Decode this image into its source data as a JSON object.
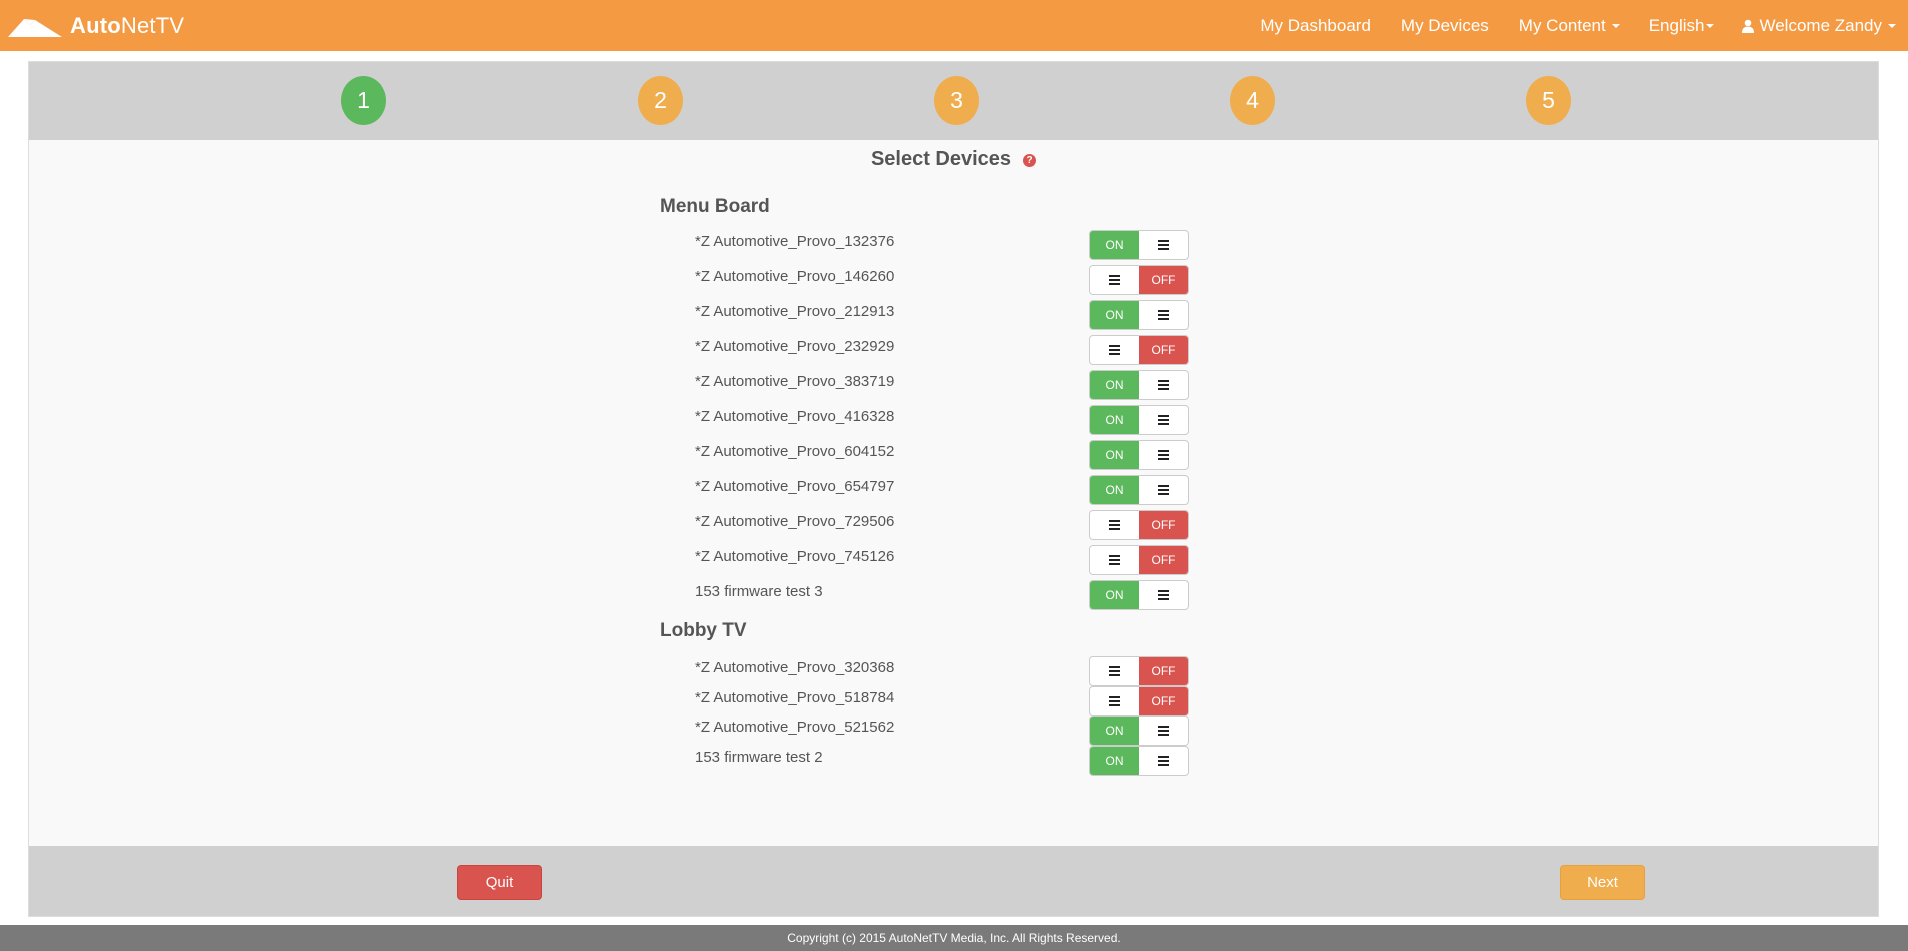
{
  "brand": {
    "name_bold": "Auto",
    "name_rest": "NetTV"
  },
  "nav": {
    "dashboard": "My Dashboard",
    "devices": "My Devices",
    "content": "My Content",
    "language": "English",
    "user": "Welcome Zandy"
  },
  "steps": [
    {
      "label": "1",
      "state": "active"
    },
    {
      "label": "2",
      "state": "pending"
    },
    {
      "label": "3",
      "state": "pending"
    },
    {
      "label": "4",
      "state": "pending"
    },
    {
      "label": "5",
      "state": "pending"
    }
  ],
  "page": {
    "title": "Select Devices",
    "help_icon": "?"
  },
  "groups": [
    {
      "name": "Menu Board",
      "devices": [
        {
          "name": "*Z Automotive_Provo_132376",
          "state": "ON"
        },
        {
          "name": "*Z Automotive_Provo_146260",
          "state": "OFF"
        },
        {
          "name": "*Z Automotive_Provo_212913",
          "state": "ON"
        },
        {
          "name": "*Z Automotive_Provo_232929",
          "state": "OFF"
        },
        {
          "name": "*Z Automotive_Provo_383719",
          "state": "ON"
        },
        {
          "name": "*Z Automotive_Provo_416328",
          "state": "ON"
        },
        {
          "name": "*Z Automotive_Provo_604152",
          "state": "ON"
        },
        {
          "name": "*Z Automotive_Provo_654797",
          "state": "ON"
        },
        {
          "name": "*Z Automotive_Provo_729506",
          "state": "OFF"
        },
        {
          "name": "*Z Automotive_Provo_745126",
          "state": "OFF"
        },
        {
          "name": "153 firmware test 3",
          "state": "ON"
        }
      ]
    },
    {
      "name": "Lobby TV",
      "devices": [
        {
          "name": "*Z Automotive_Provo_320368",
          "state": "OFF"
        },
        {
          "name": "*Z Automotive_Provo_518784",
          "state": "OFF"
        },
        {
          "name": "*Z Automotive_Provo_521562",
          "state": "ON"
        },
        {
          "name": "153 firmware test 2",
          "state": "ON"
        }
      ]
    }
  ],
  "buttons": {
    "quit": "Quit",
    "next": "Next"
  },
  "footer": {
    "copyright": "Copyright (c) 2015 AutoNetTV Media, Inc. All Rights Reserved."
  },
  "colors": {
    "navbar": "#f39a43",
    "step_active": "#5cb85c",
    "step_pending": "#f0ad4e",
    "toggle_on": "#5cb85c",
    "toggle_off": "#d9534f",
    "quit": "#d9534f",
    "next": "#f0ad4e"
  }
}
